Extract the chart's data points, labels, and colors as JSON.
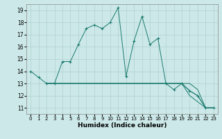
{
  "xlabel": "Humidex (Indice chaleur)",
  "xlim": [
    -0.5,
    23.5
  ],
  "ylim": [
    10.5,
    19.5
  ],
  "xticks": [
    0,
    1,
    2,
    3,
    4,
    5,
    6,
    7,
    8,
    9,
    10,
    11,
    12,
    13,
    14,
    15,
    16,
    17,
    18,
    19,
    20,
    21,
    22,
    23
  ],
  "yticks": [
    11,
    12,
    13,
    14,
    15,
    16,
    17,
    18,
    19
  ],
  "background_color": "#cce8e8",
  "grid_color": "#aacccc",
  "line_color": "#1a7a6e",
  "main_line_x": [
    0,
    1,
    2,
    3,
    4,
    5,
    6,
    7,
    8,
    9,
    10,
    11,
    12,
    13,
    14,
    15,
    16,
    17,
    18,
    19,
    20,
    21,
    22,
    23
  ],
  "main_line_y": [
    14,
    13.5,
    13,
    13,
    14.8,
    14.8,
    16.2,
    17.5,
    17.8,
    17.5,
    18.0,
    19.2,
    13.6,
    16.5,
    18.5,
    16.2,
    16.7,
    13,
    12.5,
    13,
    12.4,
    12.0,
    11,
    11
  ],
  "flat1_x": [
    2,
    3,
    4,
    5,
    6,
    7,
    8,
    9,
    10,
    11,
    12,
    13,
    14,
    15,
    16,
    17,
    18,
    19,
    20,
    21,
    22,
    23
  ],
  "flat1_y": [
    13,
    13,
    13,
    13,
    13,
    13,
    13,
    13,
    13,
    13,
    13,
    13,
    13,
    13,
    13,
    13,
    13,
    13,
    13,
    12.5,
    11,
    11
  ],
  "flat2_x": [
    2,
    3,
    4,
    5,
    6,
    7,
    8,
    9,
    10,
    11,
    12,
    13,
    14,
    15,
    16,
    17,
    18,
    19,
    20,
    21,
    22,
    23
  ],
  "flat2_y": [
    13,
    13,
    13,
    13,
    13,
    13,
    13,
    13,
    13,
    13,
    13,
    13,
    13,
    13,
    13,
    13,
    13,
    13,
    12.4,
    12.0,
    11,
    11
  ],
  "flat3_x": [
    2,
    3,
    4,
    5,
    6,
    7,
    8,
    9,
    10,
    11,
    12,
    13,
    14,
    15,
    16,
    17,
    18,
    19,
    20,
    21,
    22,
    23
  ],
  "flat3_y": [
    13,
    13,
    13,
    13,
    13,
    13,
    13,
    13,
    13,
    13,
    13,
    13,
    13,
    13,
    13,
    13,
    13,
    13,
    12.0,
    11.5,
    11,
    11
  ]
}
